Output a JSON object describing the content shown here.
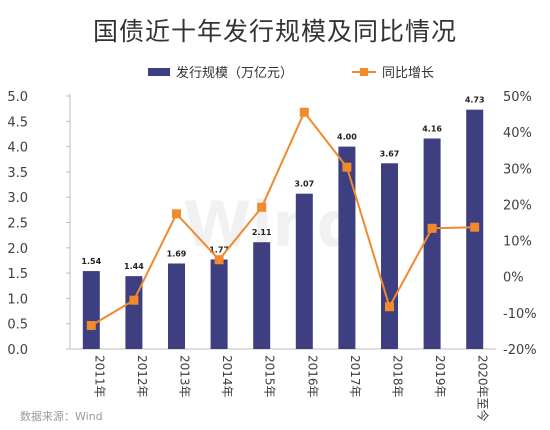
{
  "title": "国债近十年发行规模及同比情况",
  "legend": {
    "bar_label": "发行规模（万亿元）",
    "line_label": "同比增长"
  },
  "source": "数据来源：Wind",
  "watermark": "Wind",
  "colors": {
    "bar": "#3d3f80",
    "line": "#f08a2c",
    "axis": "#bfbfbf",
    "text": "#404040"
  },
  "chart_data": {
    "type": "bar",
    "categories": [
      "2011年",
      "2012年",
      "2013年",
      "2014年",
      "2015年",
      "2016年",
      "2017年",
      "2018年",
      "2019年",
      "2020年至今"
    ],
    "series": [
      {
        "name": "发行规模（万亿元）",
        "type": "bar",
        "axis": "left",
        "values": [
          1.54,
          1.44,
          1.69,
          1.77,
          2.11,
          3.07,
          4.0,
          3.67,
          4.16,
          4.73
        ],
        "labels": [
          "1.54",
          "1.44",
          "1.69",
          "1.77",
          "2.11",
          "3.07",
          "4.00",
          "3.67",
          "4.16",
          "4.73"
        ]
      },
      {
        "name": "同比增长",
        "type": "line",
        "axis": "right",
        "values": [
          -13.5,
          -6.5,
          17.4,
          4.7,
          19.2,
          45.5,
          30.3,
          -8.3,
          13.4,
          13.7
        ]
      }
    ],
    "ylim_left": [
      0,
      5
    ],
    "yticks_left": [
      "0.0",
      "0.5",
      "1.0",
      "1.5",
      "2.0",
      "2.5",
      "3.0",
      "3.5",
      "4.0",
      "4.5",
      "5.0"
    ],
    "ylim_right": [
      -20,
      50
    ],
    "yticks_right": [
      "-20%",
      "-10%",
      "0%",
      "10%",
      "20%",
      "30%",
      "40%",
      "50%"
    ],
    "grid": false,
    "legend_position": "top-center"
  }
}
